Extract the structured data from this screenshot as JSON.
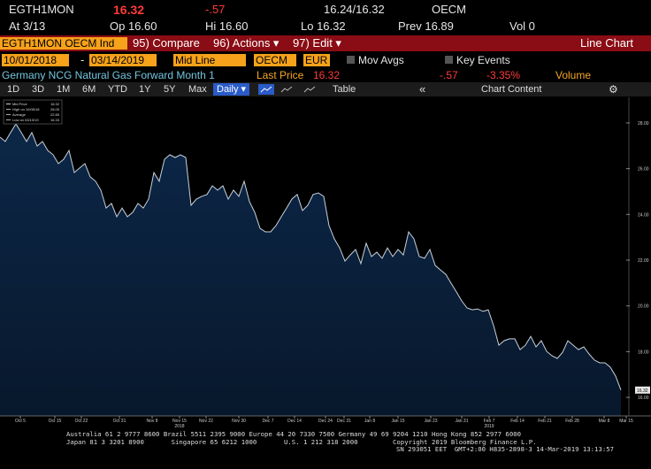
{
  "header": {
    "ticker": "EGTH1MON",
    "last": "16.32",
    "change": "-.57",
    "bid_ask": "16.24/16.32",
    "source": "OECM",
    "at": "At 3/13",
    "open": "Op 16.60",
    "high": "Hi 16.60",
    "low": "Lo 16.32",
    "prev": "Prev 16.89",
    "volume": "Vol 0"
  },
  "menu": {
    "security": "EGTH1MON OECM Ind",
    "items": [
      "95) Compare",
      "96) Actions ▾",
      "97) Edit ▾"
    ],
    "view": "Line Chart"
  },
  "controls": {
    "start_date": "10/01/2018",
    "date_separator": "-",
    "end_date": "03/14/2019",
    "field": "Mid Line",
    "source": "OECM",
    "currency": "EUR",
    "options": [
      "Mov Avgs",
      "Key Events"
    ]
  },
  "info": {
    "name": "Germany NCG Natural Gas Forward Month 1",
    "last_price_label": "Last Price",
    "last_price": "16.32",
    "change": "-.57",
    "change_pct": "-3.35%",
    "volume_label": "Volume"
  },
  "toolbar": {
    "ranges": [
      "1D",
      "3D",
      "1M",
      "6M",
      "YTD",
      "1Y",
      "5Y",
      "Max"
    ],
    "frequency": "Daily ▾",
    "table": "Table",
    "collapse": "«",
    "panel": "Chart Content"
  },
  "chart_data": {
    "type": "area",
    "color": "#c9d1da",
    "fill": "#0c2748",
    "values": [
      27.38,
      27.19,
      27.58,
      27.96,
      27.58,
      27.19,
      27.58,
      26.99,
      27.19,
      26.8,
      26.61,
      26.22,
      26.41,
      26.8,
      25.83,
      26.03,
      26.22,
      25.64,
      25.45,
      25.06,
      24.28,
      24.48,
      23.9,
      24.28,
      23.9,
      24.09,
      24.48,
      24.28,
      24.67,
      25.83,
      25.45,
      26.41,
      26.61,
      26.49,
      26.61,
      26.49,
      24.4,
      24.67,
      24.79,
      24.87,
      25.25,
      25.06,
      25.25,
      24.67,
      25.06,
      24.79,
      25.45,
      24.56,
      24.09,
      23.39,
      23.24,
      23.24,
      23.51,
      23.9,
      24.28,
      24.67,
      24.87,
      24.17,
      24.4,
      24.87,
      24.94,
      24.79,
      23.51,
      22.93,
      22.54,
      21.96,
      22.23,
      22.47,
      21.85,
      22.74,
      22.16,
      22.35,
      22.08,
      22.54,
      22.16,
      22.47,
      22.23,
      23.24,
      22.93,
      22.16,
      22.08,
      22.47,
      21.77,
      21.57,
      21.38,
      20.99,
      20.61,
      20.22,
      19.91,
      19.83,
      19.87,
      19.76,
      19.83,
      19.14,
      18.28,
      18.48,
      18.56,
      18.56,
      18.09,
      18.28,
      18.67,
      18.21,
      18.48,
      18.01,
      17.82,
      17.7,
      17.97,
      18.48,
      18.28,
      18.09,
      18.21,
      17.9,
      17.63,
      17.51,
      17.51,
      17.32,
      16.93,
      16.32
    ],
    "xlim": [
      0,
      118
    ],
    "ylim": [
      15.19,
      29.12
    ],
    "xticks": [
      {
        "value": 3.83,
        "label": "Oct 5"
      },
      {
        "value": 10.33,
        "label": "Oct 15"
      },
      {
        "value": 15.33,
        "label": "Oct 22"
      },
      {
        "value": 22.5,
        "label": "Oct 31"
      },
      {
        "value": 28.67,
        "label": "Nov 8"
      },
      {
        "value": 33.83,
        "label": "Nov 15"
      },
      {
        "value": 38.83,
        "label": "Nov 22"
      },
      {
        "value": 45,
        "label": "Nov 30"
      },
      {
        "value": 50.5,
        "label": "Dec 7"
      },
      {
        "value": 55.5,
        "label": "Dec 14"
      },
      {
        "value": 61.33,
        "label": "Dec 24"
      },
      {
        "value": 64.83,
        "label": "Dec 31"
      },
      {
        "value": 69.67,
        "label": "Jan 8"
      },
      {
        "value": 75,
        "label": "Jan 15"
      },
      {
        "value": 81.17,
        "label": "Jan 23"
      },
      {
        "value": 87,
        "label": "Jan 31"
      },
      {
        "value": 92.17,
        "label": "Feb 7"
      },
      {
        "value": 97.5,
        "label": "Feb 14"
      },
      {
        "value": 102.67,
        "label": "Feb 21"
      },
      {
        "value": 107.83,
        "label": "Feb 28"
      },
      {
        "value": 113.83,
        "label": "Mar 8"
      },
      {
        "value": 118,
        "label": "Mar 15"
      }
    ],
    "year_labels": [
      {
        "value": 33.83,
        "label": "2018"
      },
      {
        "value": 92.17,
        "label": "2019"
      }
    ],
    "yticks": [
      {
        "value": 16,
        "label": "16.00"
      },
      {
        "value": 18,
        "label": "18.00"
      },
      {
        "value": 20,
        "label": "20.00"
      },
      {
        "value": 22,
        "label": "22.00"
      },
      {
        "value": 24,
        "label": "24.00"
      },
      {
        "value": 26,
        "label": "26.00"
      },
      {
        "value": 28,
        "label": "28.00"
      }
    ],
    "legend": [
      {
        "name": "Mid Price",
        "value": "16.32"
      },
      {
        "name": "High on 10/05/18",
        "value": "28.05"
      },
      {
        "name": "Average",
        "value": "22.85"
      },
      {
        "name": "Low on 03/13/19",
        "value": "16.33"
      }
    ]
  },
  "footer": [
    "Australia 61 2 9777 8600 Brazil 5511 2395 9000 Europe 44 20 7330 7500 Germany 49 69 9204 1210 Hong Kong 852 2977 6000",
    "Japan 81 3 3201 8900       Singapore 65 6212 1000       U.S. 1 212 318 2000         Copyright 2019 Bloomberg Finance L.P.",
    "SN 293051 EET  GMT+2:00 H835-2898-3 14-Mar-2019 13:13:57"
  ]
}
